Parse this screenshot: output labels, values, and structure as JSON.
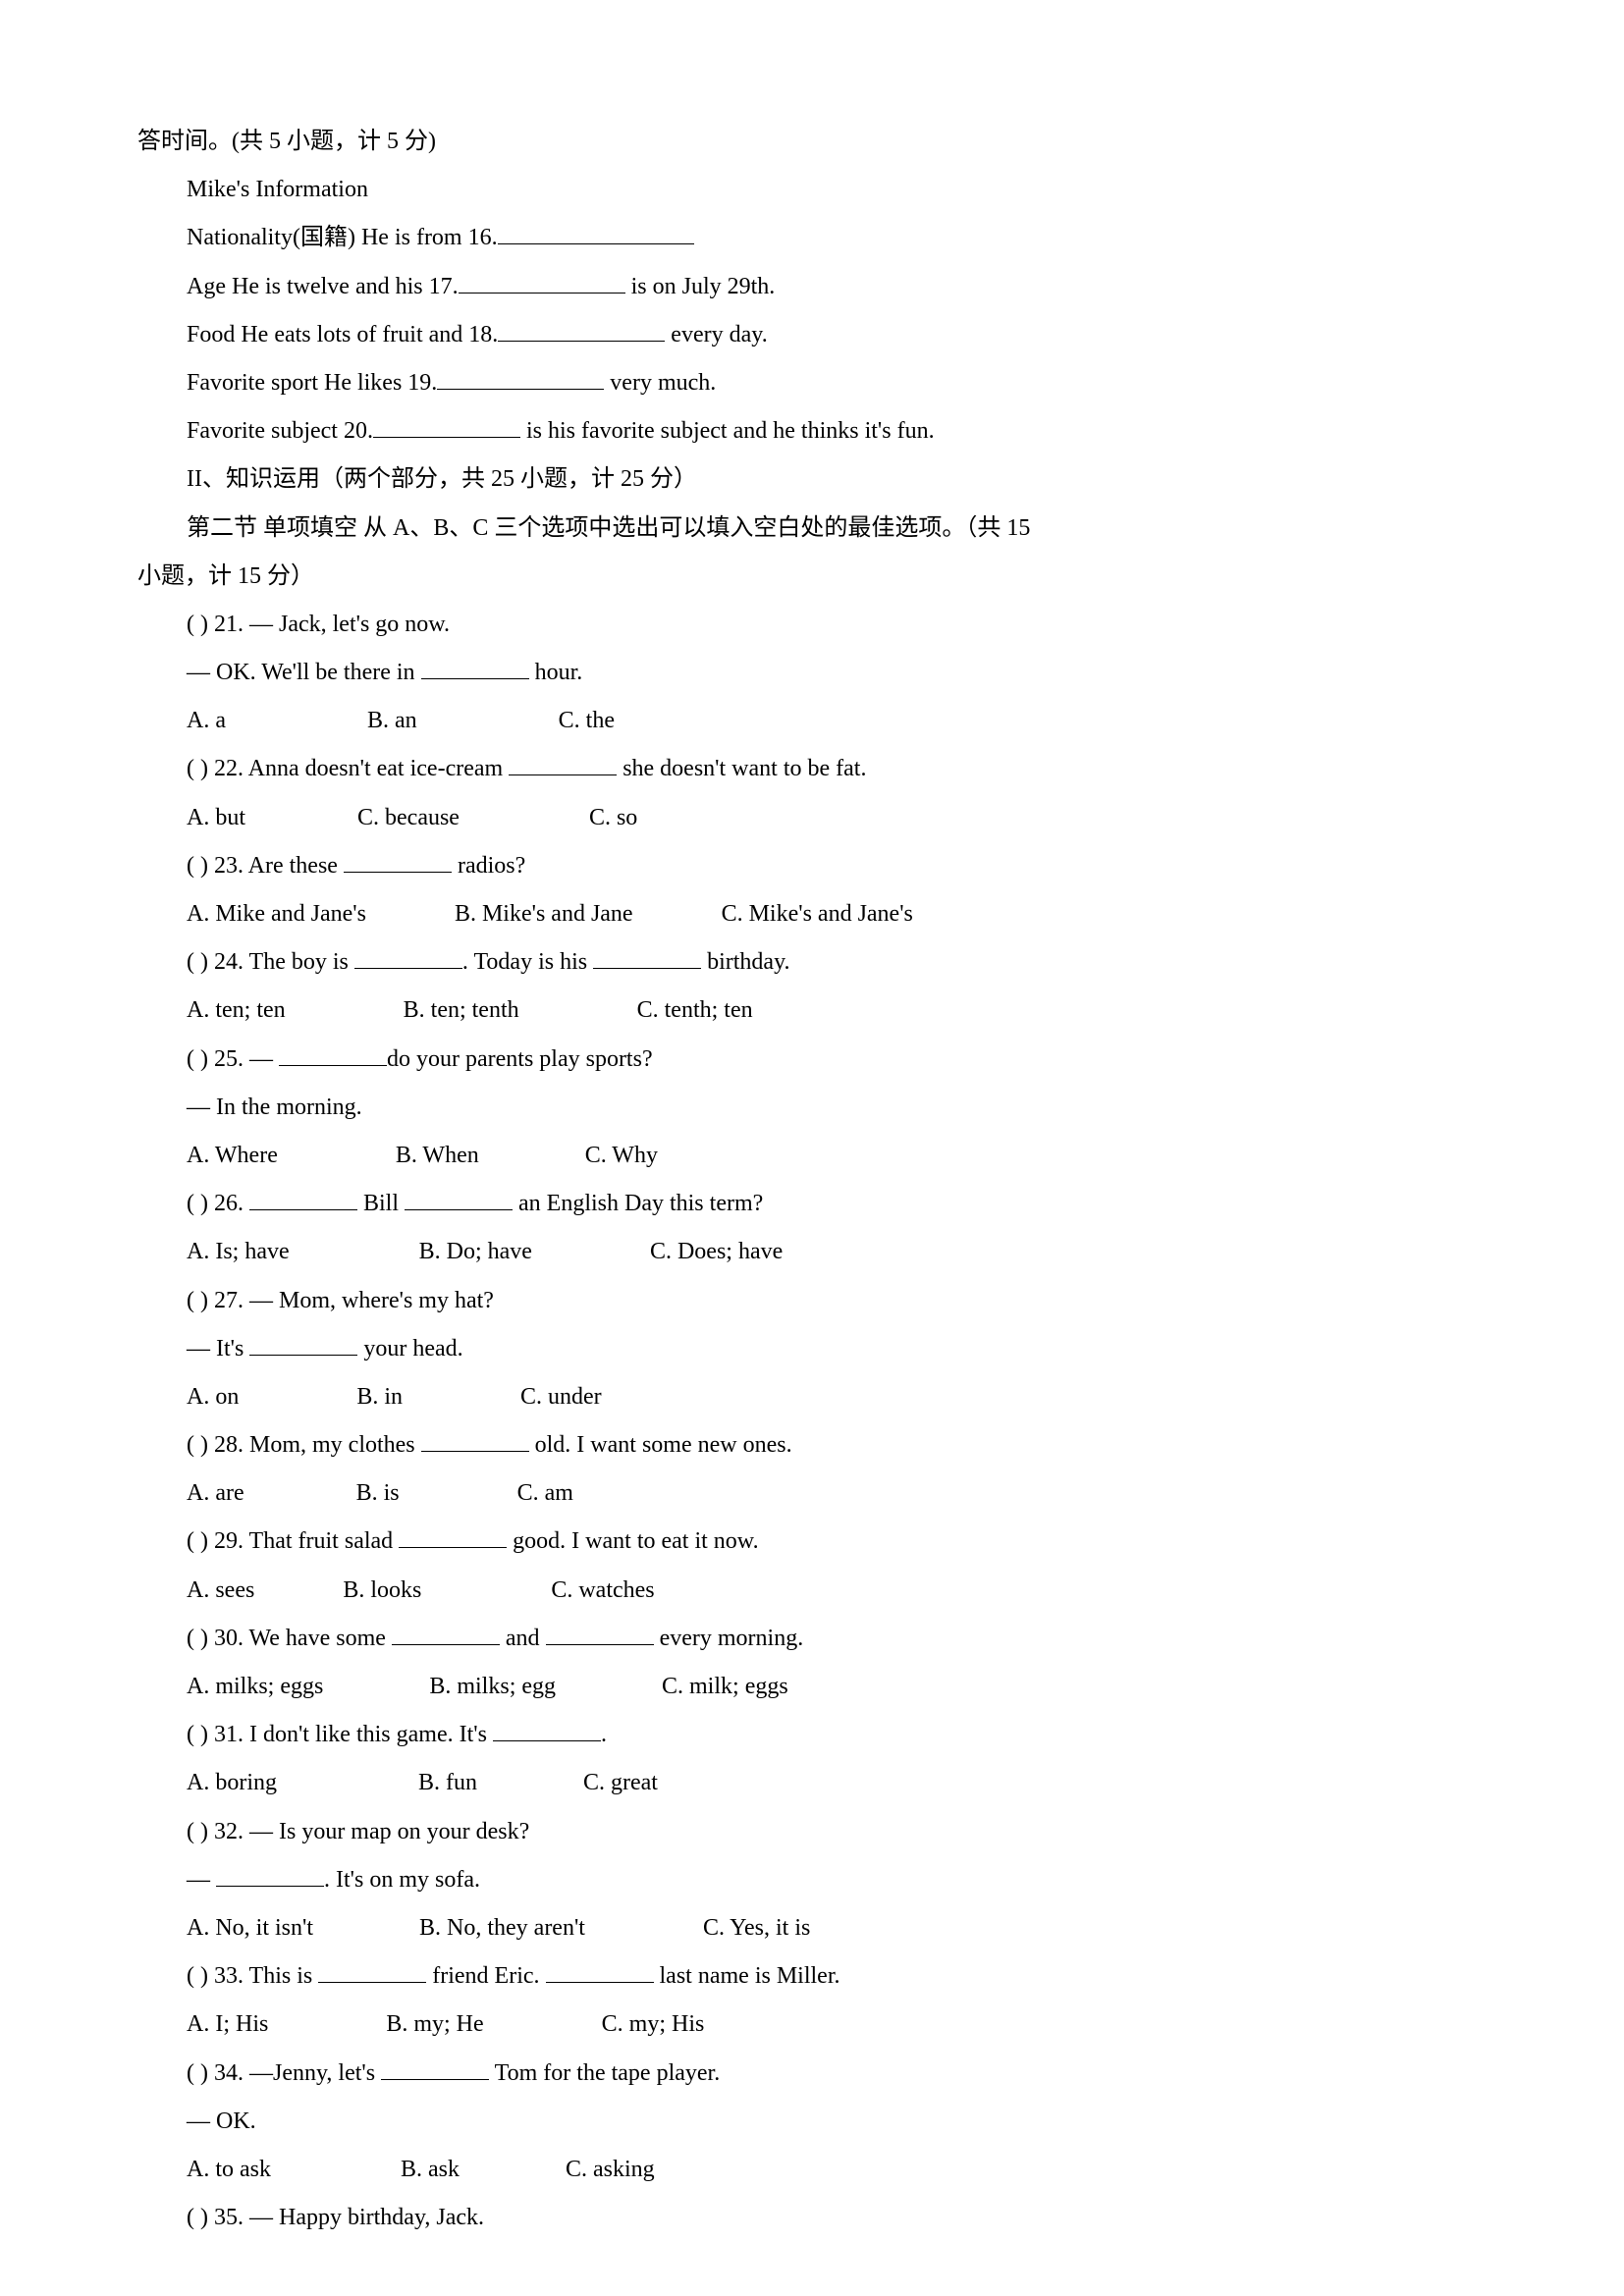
{
  "intro": {
    "header": "答时间。(共 5 小题，计 5 分)",
    "info_title": "Mike's Information",
    "line16_pre": "Nationality(国籍) He is from 16.",
    "line17_pre": "Age He is twelve and his 17.",
    "line17_post": " is on July 29th.",
    "line18_pre": "Food He eats lots of fruit and 18.",
    "line18_post": " every day.",
    "line19_pre": "Favorite sport He likes 19.",
    "line19_post": " very much.",
    "line20_pre": "Favorite subject 20.",
    "line20_post": " is his favorite subject and he thinks it's fun."
  },
  "section": {
    "title": "II、知识运用（两个部分，共 25 小题，计 25 分）",
    "sub": "第二节    单项填空    从 A、B、C 三个选项中选出可以填入空白处的最佳选项。（共 15",
    "sub2": "小题，计 15 分）"
  },
  "q21": {
    "stem": "(      ) 21.  —  Jack, let's go now.",
    "line2_pre": "—  OK. We'll be there in ",
    "line2_post": " hour.",
    "opts": "A. a                        B. an                        C. the"
  },
  "q22": {
    "pre": "(      ) 22. Anna doesn't eat ice-cream ",
    "post": " she doesn't want to be fat.",
    "opts": "A. but                   C. because                      C. so"
  },
  "q23": {
    "pre": "(      ) 23. Are these ",
    "post": " radios?",
    "opts": "A. Mike and Jane's               B. Mike's and Jane               C. Mike's and Jane's"
  },
  "q24": {
    "pre": "(      ) 24. The boy is ",
    "mid": ". Today is his ",
    "post": " birthday.",
    "opts": "A. ten; ten                    B. ten; tenth                    C. tenth; ten"
  },
  "q25": {
    "pre": "(      ) 25.  —  ",
    "post": "do your parents play sports?",
    "ans": "—  In the morning.",
    "opts": "A. Where                    B. When                  C. Why"
  },
  "q26": {
    "pre": "(      ) 26. ",
    "mid": " Bill ",
    "post": " an English Day this term?",
    "opts": "A. Is; have                      B. Do; have                    C. Does; have"
  },
  "q27": {
    "stem": "(      ) 27.  —  Mom, where's my hat?",
    "pre": "—  It's ",
    "post": " your head.",
    "opts": "A. on                    B. in                    C. under"
  },
  "q28": {
    "pre": "(      ) 28. Mom, my clothes ",
    "post": " old. I want some new ones.",
    "opts": "A. are                   B. is                    C. am"
  },
  "q29": {
    "pre": "(      ) 29. That fruit salad ",
    "post": " good. I want to eat it now.",
    "opts": "A. sees               B. looks                      C. watches"
  },
  "q30": {
    "pre": "(      ) 30. We have some ",
    "mid": " and ",
    "post": " every morning.",
    "opts": "A. milks; eggs                  B. milks; egg                  C. milk; eggs"
  },
  "q31": {
    "pre": "(      ) 31. I don't like this game. It's ",
    "post": ".",
    "opts": "A. boring                        B. fun                  C. great"
  },
  "q32": {
    "stem": "(      ) 32.  —  Is your map on your desk?",
    "pre": "—  ",
    "post": ". It's on my sofa.",
    "opts": "A. No, it isn't                  B. No, they aren't                    C. Yes, it is"
  },
  "q33": {
    "pre": "(      ) 33. This is ",
    "mid": " friend Eric. ",
    "post": " last name is Miller.",
    "opts": "A. I; His                    B. my; He                    C. my; His"
  },
  "q34": {
    "pre": "(      ) 34.  —Jenny, let's ",
    "post": " Tom for the tape player.",
    "ans": "—  OK.",
    "opts": "A. to ask                      B. ask                  C. asking"
  },
  "q35": {
    "stem": "(      ) 35.  —  Happy birthday, Jack."
  }
}
